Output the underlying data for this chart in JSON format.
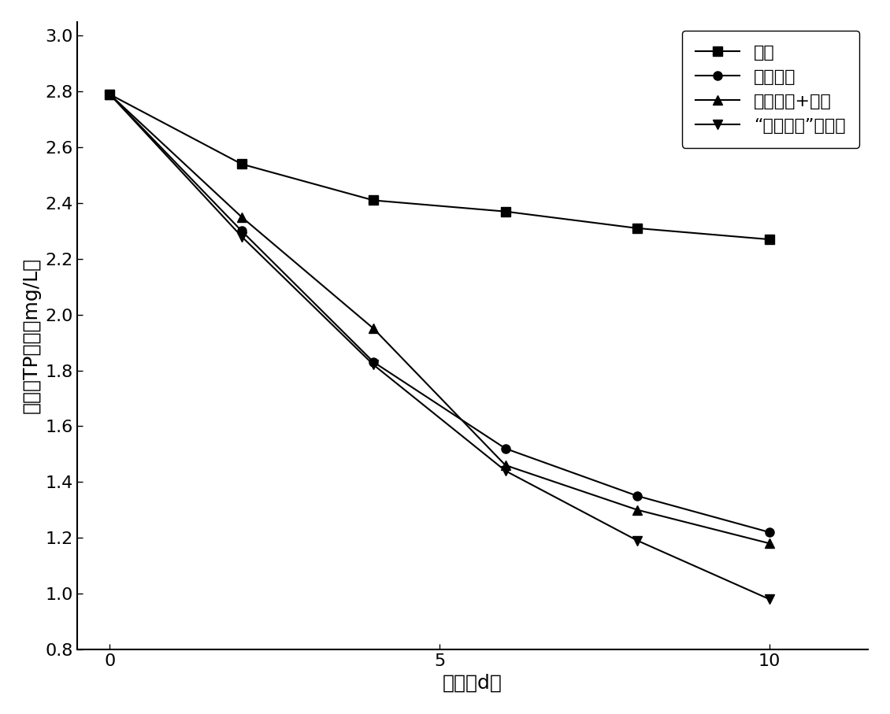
{
  "x": [
    0,
    2,
    4,
    6,
    8,
    10
  ],
  "series": [
    {
      "label": "空白",
      "marker": "s",
      "values": [
        2.79,
        2.54,
        2.41,
        2.37,
        2.31,
        2.27
      ]
    },
    {
      "label": "光合细菌",
      "marker": "o",
      "values": [
        2.79,
        2.3,
        1.83,
        1.52,
        1.35,
        1.22
      ]
    },
    {
      "label": "光合细菌+沸石",
      "marker": "^",
      "values": [
        2.79,
        2.35,
        1.95,
        1.46,
        1.3,
        1.18
      ]
    },
    {
      "label": "“人造茌膜”型颗粒",
      "marker": "v",
      "values": [
        2.79,
        2.28,
        1.82,
        1.44,
        1.19,
        0.98
      ]
    }
  ],
  "xlabel": "时间（d）",
  "ylabel": "上覆水TP浓度（mg/L）",
  "xlim": [
    -0.5,
    11.5
  ],
  "ylim": [
    0.8,
    3.05
  ],
  "yticks": [
    0.8,
    1.0,
    1.2,
    1.4,
    1.6,
    1.8,
    2.0,
    2.2,
    2.4,
    2.6,
    2.8,
    3.0
  ],
  "xticks": [
    0,
    5,
    10
  ],
  "color": "black",
  "linewidth": 1.5,
  "markersize": 8,
  "legend_loc": "upper right",
  "label_fontsize": 18,
  "tick_fontsize": 16,
  "legend_fontsize": 16
}
